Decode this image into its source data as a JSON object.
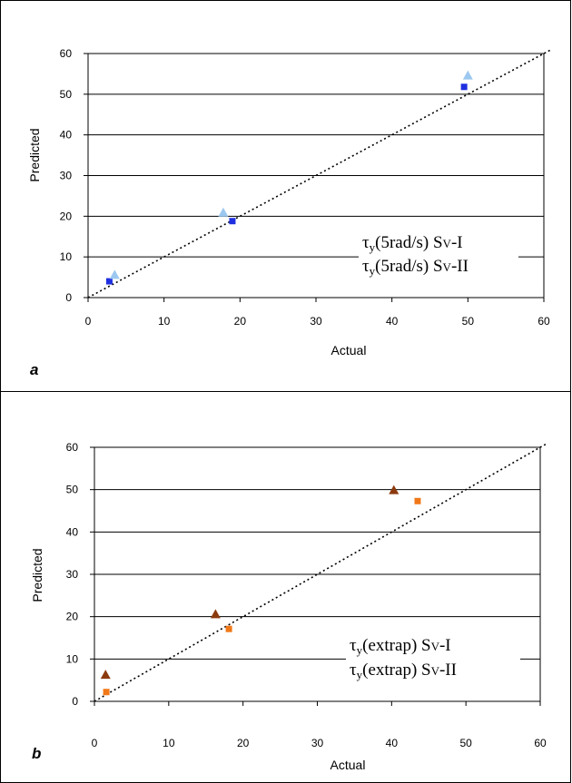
{
  "chart_data": [
    {
      "type": "scatter",
      "panel_label": "a",
      "xlabel": "Actual",
      "ylabel": "Predicted",
      "xlim": [
        0,
        60
      ],
      "ylim": [
        0,
        60
      ],
      "xticks": [
        "0",
        "10",
        "20",
        "30",
        "40",
        "50",
        "60"
      ],
      "yticks": [
        "0",
        "10",
        "20",
        "30",
        "40",
        "50",
        "60"
      ],
      "grid": "horizontal",
      "reference_line": "y = x (dotted)",
      "legend_position": "bottom-right",
      "series": [
        {
          "legend": {
            "tau": "τ",
            "sub_y": "y",
            "cond": "(5rad/s) S",
            "sub_v": "V",
            "suffix": "-I"
          },
          "marker": "square",
          "color": "#1f2fe0",
          "points": [
            [
              2.8,
              4.0
            ],
            [
              19.0,
              18.8
            ],
            [
              49.5,
              51.8
            ]
          ]
        },
        {
          "legend": {
            "tau": "τ",
            "sub_y": "y",
            "cond": "(5rad/s) S",
            "sub_v": "V",
            "suffix": "-II"
          },
          "marker": "triangle",
          "color": "#9cc8f0",
          "points": [
            [
              3.5,
              5.5
            ],
            [
              17.8,
              20.8
            ],
            [
              50.0,
              54.5
            ]
          ]
        }
      ]
    },
    {
      "type": "scatter",
      "panel_label": "b",
      "xlabel": "Actual",
      "ylabel": "Predicted",
      "xlim": [
        0,
        60
      ],
      "ylim": [
        0,
        60
      ],
      "xticks": [
        "0",
        "10",
        "20",
        "30",
        "40",
        "50",
        "60"
      ],
      "yticks": [
        "0",
        "10",
        "20",
        "30",
        "40",
        "50",
        "60"
      ],
      "grid": "horizontal",
      "reference_line": "y = x (dotted)",
      "legend_position": "bottom-right",
      "series": [
        {
          "legend": {
            "tau": "τ",
            "sub_y": "y",
            "cond": "(extrap) S",
            "sub_v": "V",
            "suffix": "-I"
          },
          "marker": "triangle",
          "color": "#8b3a0e",
          "points": [
            [
              1.5,
              6.2
            ],
            [
              16.3,
              20.5
            ],
            [
              40.3,
              49.8
            ]
          ]
        },
        {
          "legend": {
            "tau": "τ",
            "sub_y": "y",
            "cond": "(extrap) S",
            "sub_v": "V",
            "suffix": "-II"
          },
          "marker": "square",
          "color": "#f07818",
          "points": [
            [
              1.6,
              2.2
            ],
            [
              18.1,
              17.1
            ],
            [
              43.5,
              47.3
            ]
          ]
        }
      ]
    }
  ]
}
